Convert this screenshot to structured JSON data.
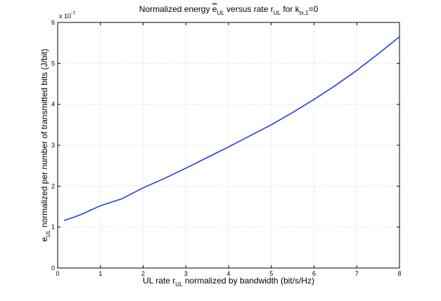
{
  "chart_data": {
    "type": "line",
    "title": {
      "prefix": "Normalized energy ",
      "e_symbol": "e",
      "e_sub": "UL",
      "mid": " versus rate r",
      "r_sub": "UL",
      "for_text": " for k",
      "k_sub": "tx,1",
      "suffix": "=0"
    },
    "xlabel": {
      "prefix": "UL rate r",
      "sub": "UL",
      "suffix": " normalized by bandwidth (bit/s/Hz)"
    },
    "ylabel": {
      "prefix": "e",
      "sub": "UL",
      "suffix": " normalized per number of transmitted bits (J/bit)"
    },
    "y_multiplier": {
      "base": "x 10",
      "exponent": "-7"
    },
    "xlim": [
      0,
      8
    ],
    "ylim": [
      0,
      6
    ],
    "xticks": [
      "0",
      "1",
      "2",
      "3",
      "4",
      "5",
      "6",
      "7",
      "8"
    ],
    "yticks": [
      "0",
      "1",
      "2",
      "3",
      "4",
      "5",
      "6"
    ],
    "grid": true,
    "line_color": "#1f3fe0",
    "series": [
      {
        "x": [
          0.15,
          0.4,
          0.6,
          0.8,
          1.0,
          1.2,
          1.5,
          2.0,
          2.5,
          3.0,
          3.5,
          4.0,
          4.5,
          5.0,
          5.5,
          6.0,
          6.5,
          7.0,
          7.5,
          8.0
        ],
        "y": [
          1.16,
          1.25,
          1.33,
          1.43,
          1.52,
          1.59,
          1.69,
          1.96,
          2.19,
          2.44,
          2.7,
          2.96,
          3.23,
          3.5,
          3.8,
          4.12,
          4.46,
          4.83,
          5.23,
          5.65
        ]
      }
    ]
  }
}
